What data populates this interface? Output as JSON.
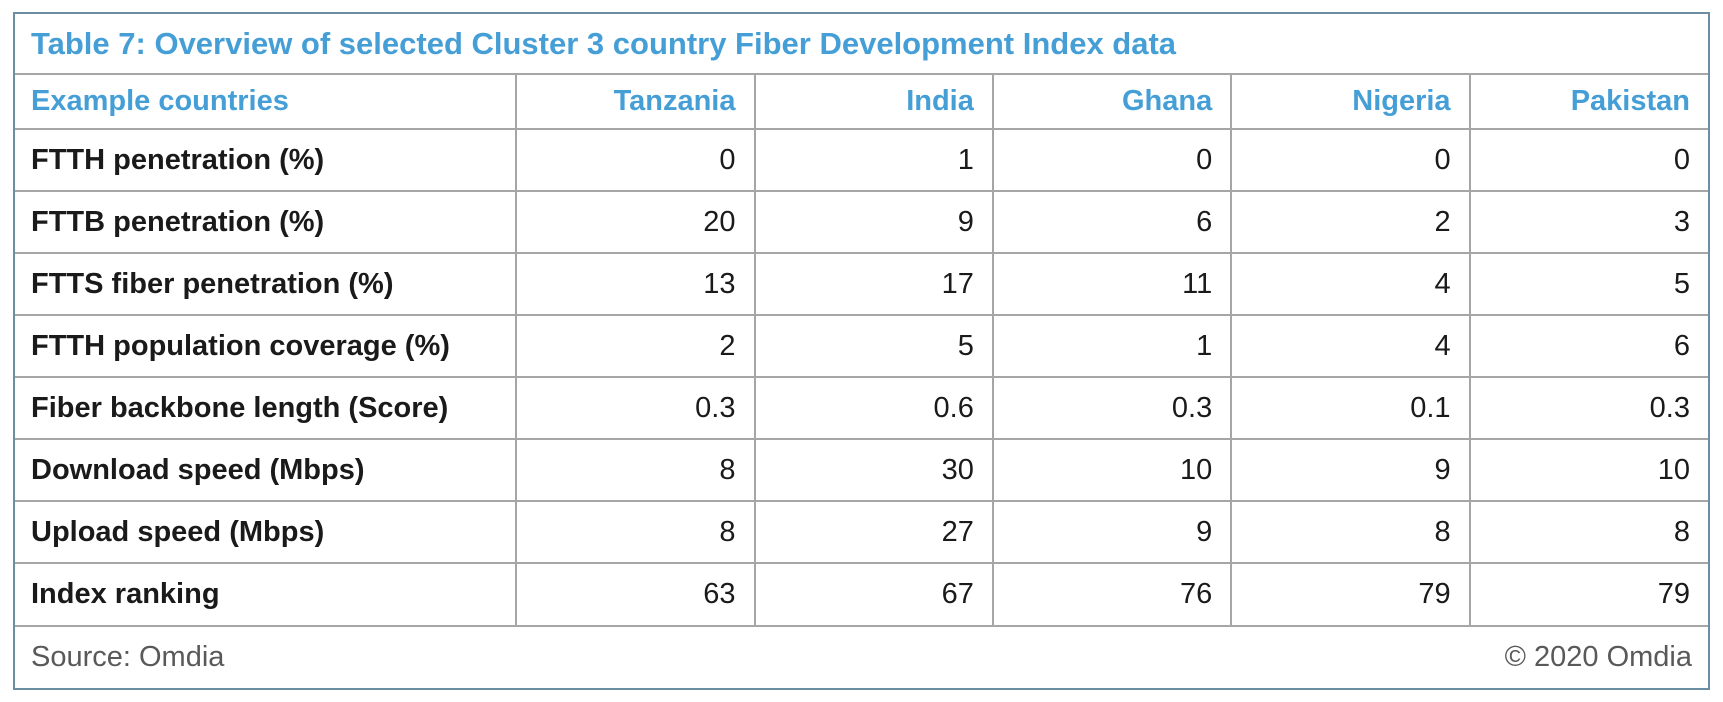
{
  "title": "Table 7: Overview of selected Cluster 3 country Fiber Development Index data",
  "table": {
    "header": {
      "label_col": "Example countries",
      "countries": [
        "Tanzania",
        "India",
        "Ghana",
        "Nigeria",
        "Pakistan"
      ]
    },
    "rows": [
      {
        "label": "FTTH penetration (%)",
        "values": [
          "0",
          "1",
          "0",
          "0",
          "0"
        ]
      },
      {
        "label": "FTTB penetration (%)",
        "values": [
          "20",
          "9",
          "6",
          "2",
          "3"
        ]
      },
      {
        "label": "FTTS fiber penetration (%)",
        "values": [
          "13",
          "17",
          "11",
          "4",
          "5"
        ]
      },
      {
        "label": "FTTH population coverage (%)",
        "values": [
          "2",
          "5",
          "1",
          "4",
          "6"
        ]
      },
      {
        "label": "Fiber backbone length (Score)",
        "values": [
          "0.3",
          "0.6",
          "0.3",
          "0.1",
          "0.3"
        ]
      },
      {
        "label": "Download speed (Mbps)",
        "values": [
          "8",
          "30",
          "10",
          "9",
          "10"
        ]
      },
      {
        "label": "Upload speed (Mbps)",
        "values": [
          "8",
          "27",
          "9",
          "8",
          "8"
        ]
      },
      {
        "label": "Index ranking",
        "values": [
          "63",
          "67",
          "76",
          "79",
          "79"
        ]
      }
    ]
  },
  "footer": {
    "source": "Source: Omdia",
    "copyright": "© 2020 Omdia"
  },
  "colors": {
    "accent_blue": "#459fd6",
    "grid_line": "#a6a6a6",
    "outer_border": "#6b8ea2",
    "text_dark": "#1a1a1a",
    "footer_gray": "#595959"
  },
  "chart_data": {
    "type": "table",
    "title": "Table 7: Overview of selected Cluster 3 country Fiber Development Index data",
    "categories": [
      "Tanzania",
      "India",
      "Ghana",
      "Nigeria",
      "Pakistan"
    ],
    "series": [
      {
        "name": "FTTH penetration (%)",
        "values": [
          0,
          1,
          0,
          0,
          0
        ]
      },
      {
        "name": "FTTB penetration (%)",
        "values": [
          20,
          9,
          6,
          2,
          3
        ]
      },
      {
        "name": "FTTS fiber penetration (%)",
        "values": [
          13,
          17,
          11,
          4,
          5
        ]
      },
      {
        "name": "FTTH population coverage (%)",
        "values": [
          2,
          5,
          1,
          4,
          6
        ]
      },
      {
        "name": "Fiber backbone length (Score)",
        "values": [
          0.3,
          0.6,
          0.3,
          0.1,
          0.3
        ]
      },
      {
        "name": "Download speed (Mbps)",
        "values": [
          8,
          30,
          10,
          9,
          10
        ]
      },
      {
        "name": "Upload speed (Mbps)",
        "values": [
          8,
          27,
          9,
          8,
          8
        ]
      },
      {
        "name": "Index ranking",
        "values": [
          63,
          67,
          76,
          79,
          79
        ]
      }
    ],
    "source": "Source: Omdia",
    "copyright": "© 2020 Omdia"
  }
}
